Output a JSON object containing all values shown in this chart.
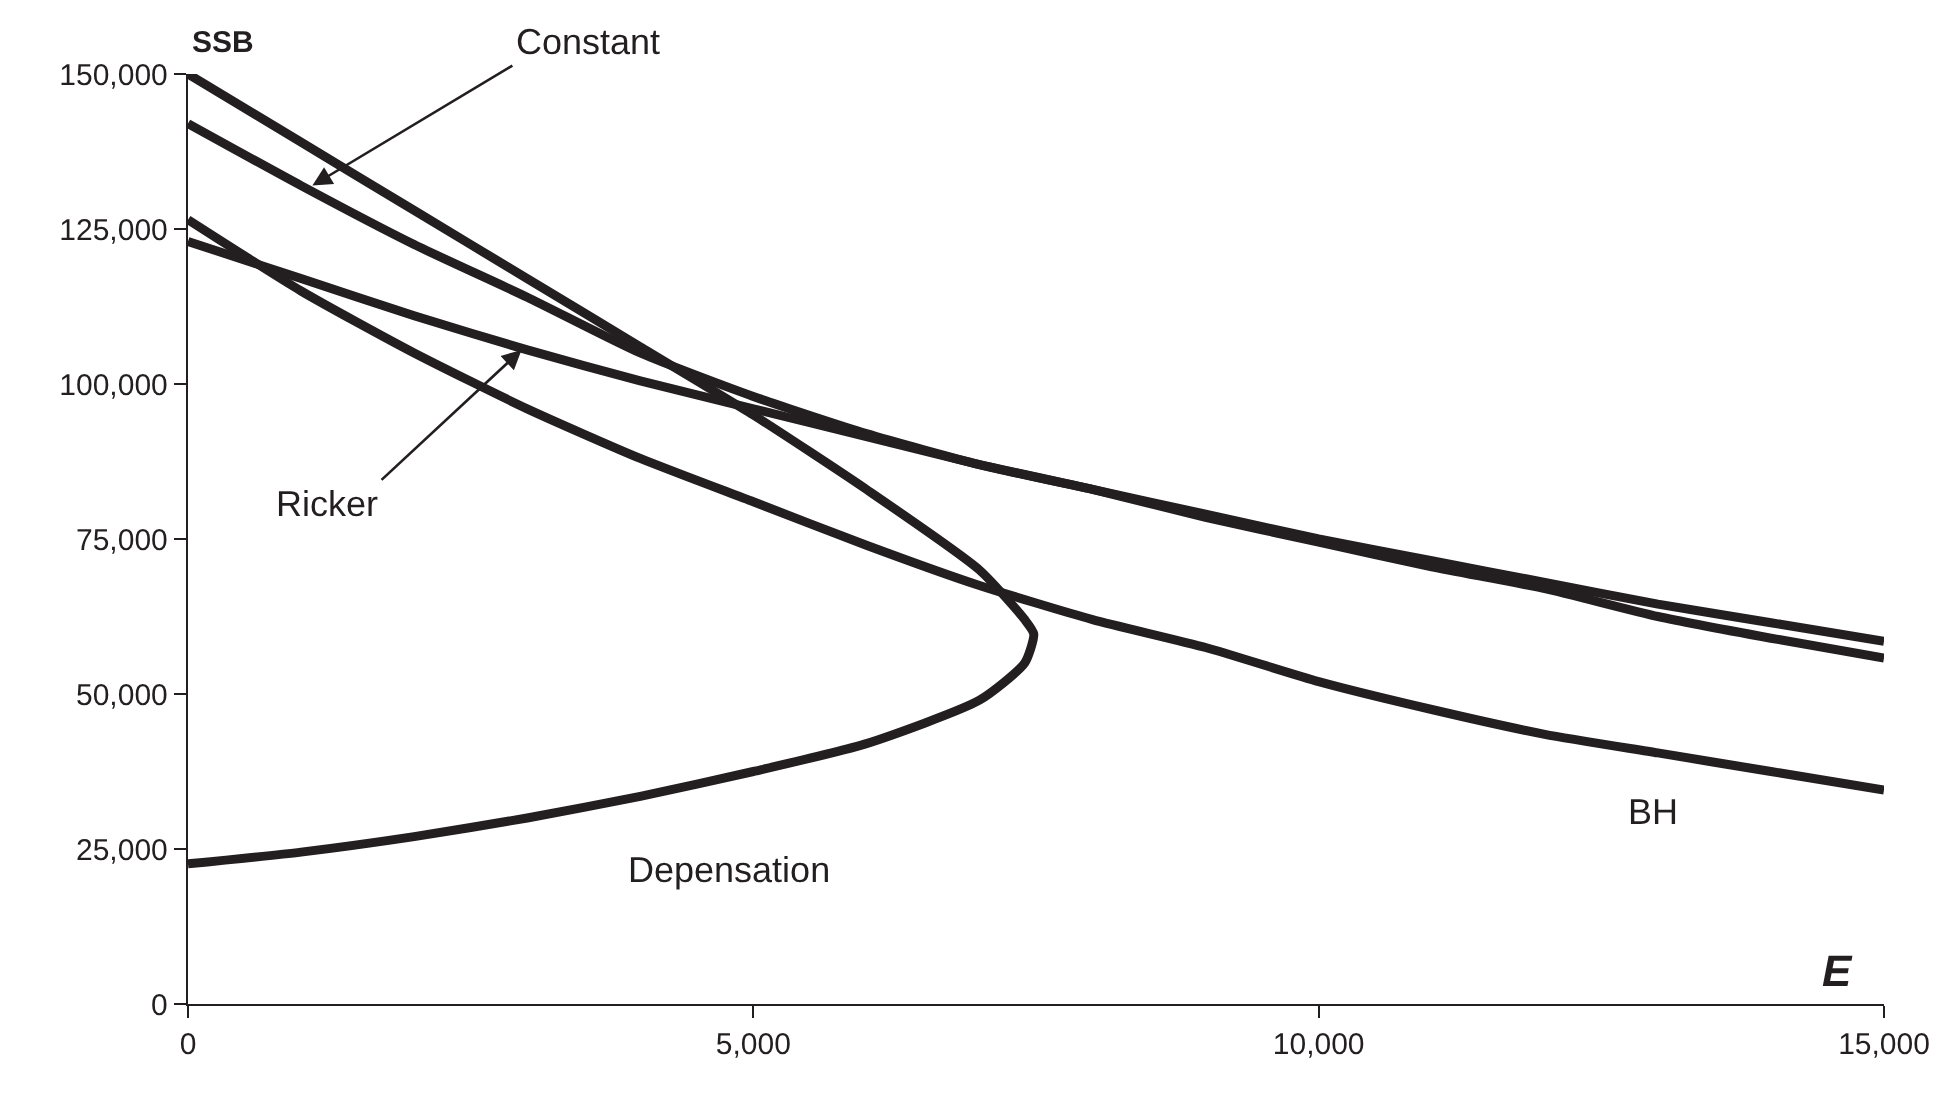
{
  "chart_data": {
    "type": "line",
    "xlabel": "E",
    "ylabel": "SSB",
    "xlim": [
      0,
      15000
    ],
    "ylim": [
      0,
      150000
    ],
    "xticks": [
      0,
      {
        "value": 5000,
        "label": "5,000"
      },
      {
        "value": 10000,
        "label": "10,000"
      },
      {
        "value": 15000,
        "label": "15,000"
      }
    ],
    "yticks": [
      0,
      {
        "value": 25000,
        "label": "25,000"
      },
      {
        "value": 50000,
        "label": "50,000"
      },
      {
        "value": 75000,
        "label": "75,000"
      },
      {
        "value": 100000,
        "label": "100,000"
      },
      {
        "value": 125000,
        "label": "125,000"
      },
      {
        "value": 150000,
        "label": "150,000"
      }
    ],
    "marker": "none",
    "line_style": "solid",
    "series": [
      {
        "color": "#231f20",
        "x": [
          0,
          1000,
          2000,
          3000,
          4000,
          5000,
          6000,
          7000,
          8000,
          9000,
          10000,
          11000,
          12000,
          13000,
          14000,
          15000
        ],
        "values": [
          142000,
          132000,
          122500,
          114000,
          105000,
          98000,
          92000,
          87000,
          83000,
          79000,
          75000,
          71500,
          68000,
          64500,
          61500,
          58500
        ]
      },
      {
        "color": "#231f20",
        "x": [
          0,
          1000,
          2000,
          3000,
          4000,
          5000,
          6000,
          7000,
          8000,
          9000,
          10000,
          11000,
          12000,
          13000,
          14000,
          15000
        ],
        "values": [
          123000,
          117000,
          111000,
          105500,
          100500,
          96000,
          91500,
          87000,
          83000,
          78500,
          74500,
          70500,
          67000,
          62500,
          59000,
          55800
        ]
      },
      {
        "color": "#231f20",
        "x": [
          0,
          1000,
          2000,
          3000,
          4000,
          5000,
          6000,
          7000,
          8000,
          9000,
          10000,
          11000,
          12000,
          13000,
          14000,
          15000
        ],
        "values": [
          126500,
          115000,
          105000,
          96000,
          88000,
          81000,
          74000,
          67500,
          62000,
          57500,
          52000,
          47500,
          43500,
          40500,
          37500,
          34500
        ]
      },
      {
        "color": "#231f20",
        "x": [
          0,
          1000,
          2000,
          3000,
          4000,
          5000,
          6000,
          7000,
          7400,
          7480,
          7400,
          7000,
          6000,
          5000,
          4000,
          3000,
          2000,
          1000,
          0
        ],
        "values": [
          150000,
          139000,
          128000,
          117000,
          106000,
          95000,
          83000,
          70000,
          62000,
          59700,
          55000,
          49000,
          42000,
          37500,
          33500,
          30000,
          27000,
          24500,
          22600
        ]
      }
    ],
    "annotations": [
      {
        "text": "Constant",
        "x": 1100,
        "y": 132000
      },
      {
        "text": "Ricker",
        "x": 2950,
        "y": 105500
      },
      "Depensation",
      "BH"
    ]
  }
}
